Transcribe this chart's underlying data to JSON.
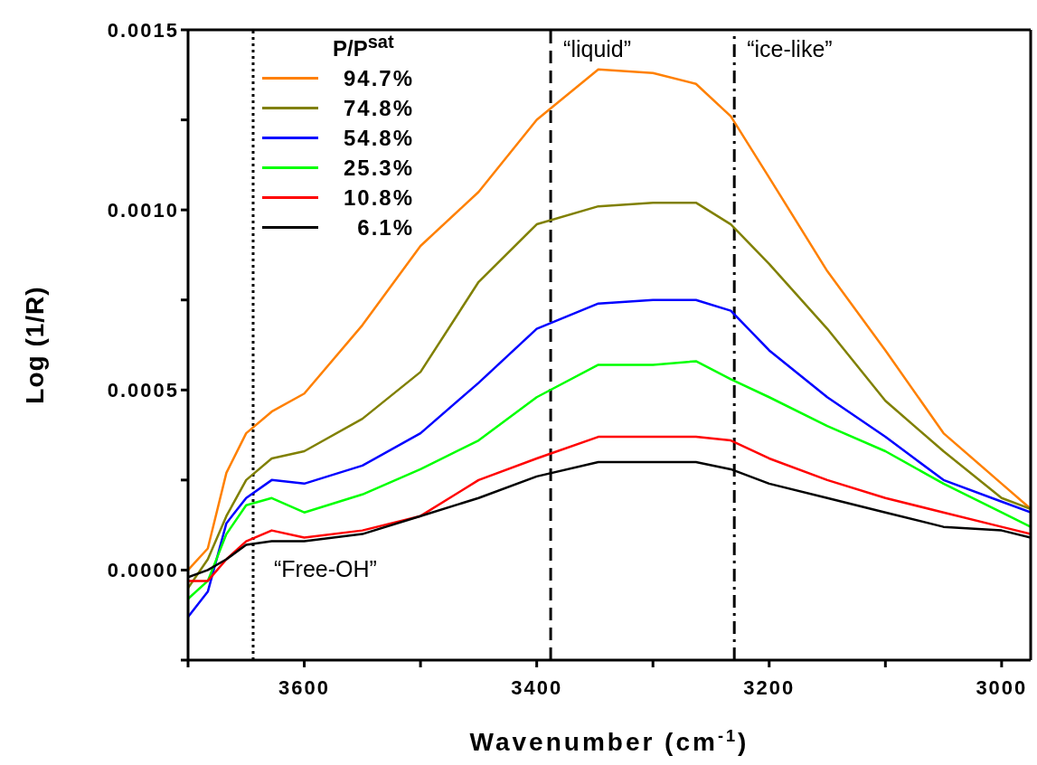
{
  "chart_data": {
    "type": "line",
    "xlabel": "Wavenumber (cm$^{-1}$)",
    "ylabel": "Log (1/R)",
    "legend_title": "P/P$^{sat}$",
    "legend": "top left",
    "x": [
      3700,
      3683,
      3667,
      3650,
      3628,
      3600,
      3550,
      3500,
      3450,
      3400,
      3347,
      3300,
      3263,
      3233,
      3200,
      3150,
      3100,
      3050,
      3000,
      2975
    ],
    "series": [
      {
        "name": "94.7%",
        "color": "#ff8000",
        "values": [
          0,
          6e-05,
          0.00027,
          0.00038,
          0.00044,
          0.00049,
          0.00068,
          0.0009,
          0.00105,
          0.00125,
          0.00139,
          0.00138,
          0.00135,
          0.00126,
          0.00109,
          0.00083,
          0.00061,
          0.00038,
          0.00024,
          0.00017
        ]
      },
      {
        "name": "74.8%",
        "color": "#808000",
        "values": [
          -5e-05,
          3e-05,
          0.00015,
          0.00025,
          0.00031,
          0.00033,
          0.00042,
          0.00055,
          0.0008,
          0.00096,
          0.00101,
          0.00102,
          0.00102,
          0.00096,
          0.00085,
          0.00067,
          0.00047,
          0.00033,
          0.0002,
          0.00017
        ]
      },
      {
        "name": "54.8%",
        "color": "#0000ff",
        "values": [
          -0.00013,
          -6e-05,
          0.00013,
          0.0002,
          0.00025,
          0.00024,
          0.00029,
          0.00038,
          0.00052,
          0.00067,
          0.00074,
          0.00075,
          0.00075,
          0.00072,
          0.00061,
          0.00048,
          0.00037,
          0.00025,
          0.00019,
          0.00016
        ]
      },
      {
        "name": "25.3%",
        "color": "#00ff00",
        "values": [
          -8e-05,
          -3e-05,
          0.0001,
          0.00018,
          0.0002,
          0.00016,
          0.00021,
          0.00028,
          0.00036,
          0.00048,
          0.00057,
          0.00057,
          0.00058,
          0.00053,
          0.00048,
          0.0004,
          0.00033,
          0.00024,
          0.00016,
          0.00012
        ]
      },
      {
        "name": "10.8%",
        "color": "#ff0000",
        "values": [
          -3e-05,
          -3e-05,
          3e-05,
          8e-05,
          0.00011,
          9e-05,
          0.00011,
          0.00015,
          0.00025,
          0.00031,
          0.00037,
          0.00037,
          0.00037,
          0.00036,
          0.00031,
          0.00025,
          0.0002,
          0.00016,
          0.00012,
          0.0001
        ]
      },
      {
        "name": "6.1%",
        "color": "#000000",
        "values": [
          -2e-05,
          0,
          3e-05,
          7e-05,
          8e-05,
          8e-05,
          0.0001,
          0.00015,
          0.0002,
          0.00026,
          0.0003,
          0.0003,
          0.0003,
          0.00028,
          0.00024,
          0.0002,
          0.00016,
          0.00012,
          0.00011,
          9e-05
        ]
      }
    ],
    "xlim": [
      3700,
      2975
    ],
    "xticks": [
      {
        "value": 3700,
        "label": null
      },
      3600,
      {
        "value": 3500,
        "label": null
      },
      3400,
      {
        "value": 3300,
        "label": null
      },
      3200,
      {
        "value": 3100,
        "label": null
      },
      3000
    ],
    "ylim": [
      -0.00025,
      0.0015
    ],
    "yticks": [
      {
        "value": -0.00025,
        "label": null
      },
      {
        "value": 0,
        "label": "0.0000"
      },
      {
        "value": 0.00025,
        "label": null
      },
      {
        "value": 0.0005,
        "label": "0.0005"
      },
      {
        "value": 0.00075,
        "label": null
      },
      {
        "value": 0.001,
        "label": "0.0010"
      },
      {
        "value": 0.00125,
        "label": null
      },
      {
        "value": 0.0015,
        "label": "0.0015"
      }
    ],
    "ref_lines": [
      {
        "axis": "x",
        "value": 3644,
        "line_style": "dotted",
        "color": "#000000"
      },
      {
        "axis": "x",
        "value": 3388,
        "line_style": "dashed",
        "color": "#000000",
        "label": "“liquid”"
      },
      {
        "axis": "x",
        "value": 3230,
        "line_style": "dashdot",
        "color": "#000000",
        "label": "“ice-like”"
      }
    ],
    "annotations": [
      "“Free-OH”"
    ]
  }
}
